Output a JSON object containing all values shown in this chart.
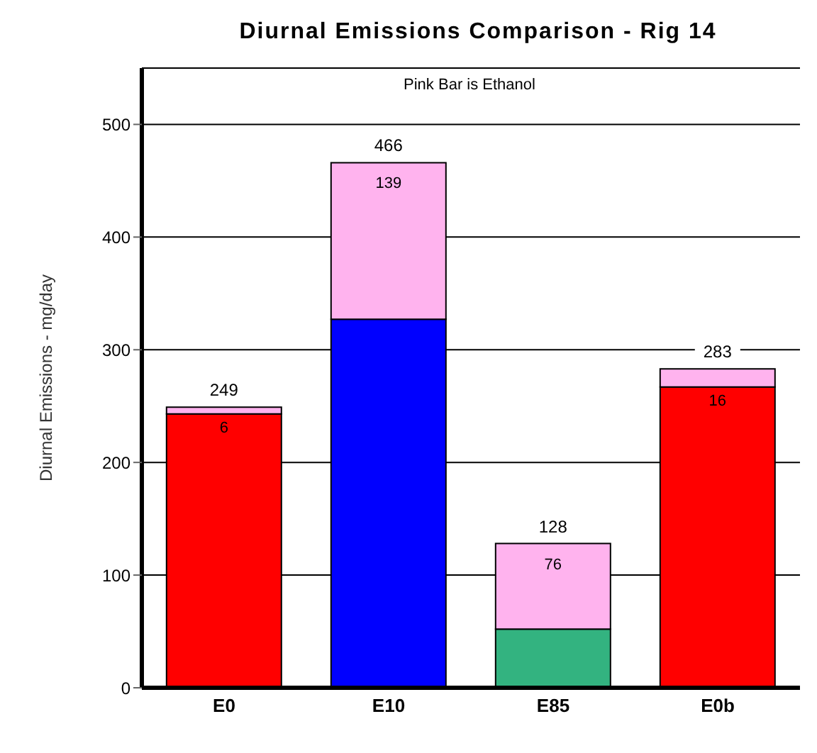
{
  "chart_data": {
    "type": "bar",
    "title": "Diurnal Emissions Comparison - Rig 14",
    "ylabel": "Diurnal Emissions - mg/day",
    "categories": [
      "E0",
      "E10",
      "E85",
      "E0b"
    ],
    "stacked": true,
    "series": [
      {
        "colors": [
          "#ff0000",
          "#0000ff",
          "#33b380",
          "#ff0000"
        ],
        "values": [
          243,
          327,
          52,
          267
        ]
      },
      {
        "color": "#ffb3ee",
        "values": [
          6,
          139,
          76,
          16
        ],
        "value_labels": [
          "6",
          "139",
          "76",
          "16"
        ]
      }
    ],
    "totals": [
      "249",
      "466",
      "128",
      "283"
    ],
    "annotations": [
      "Pink Bar is Ethanol"
    ],
    "ylim": [
      0,
      550
    ],
    "yticks": [
      0,
      100,
      200,
      300,
      400,
      500
    ],
    "grid": "y",
    "legend": false
  }
}
